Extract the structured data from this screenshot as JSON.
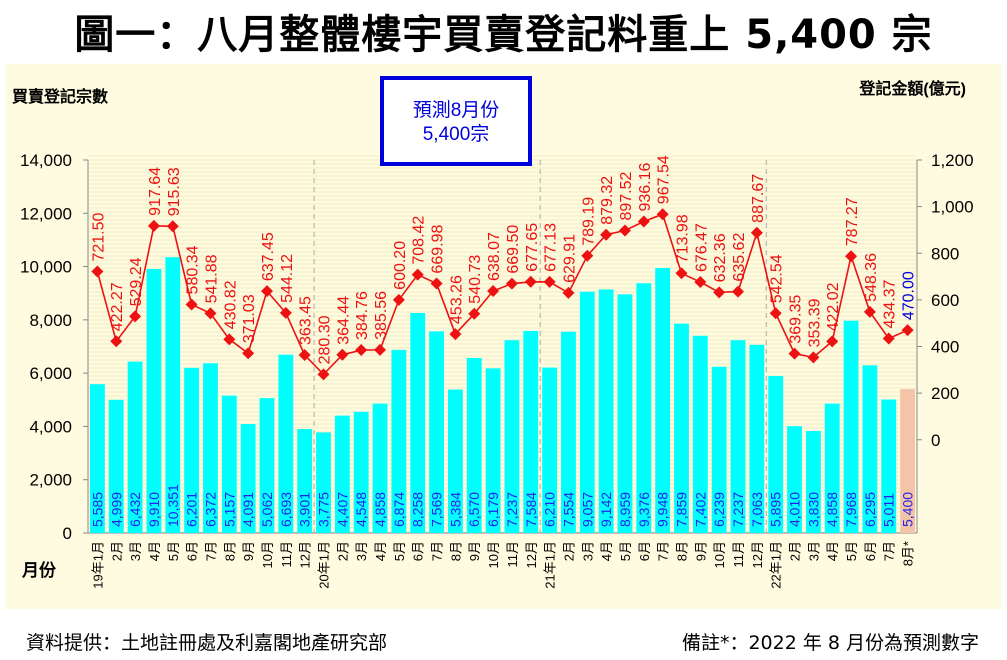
{
  "title": "圖一：八月整體樓宇買賣登記料重上 5,400 宗",
  "footer": {
    "source": "資料提供：土地註冊處及利嘉閣地產研究部",
    "note": "備註*：2022 年 8 月份為預測數字"
  },
  "annotation": {
    "line1": "預測8月份",
    "line2": "5,400宗"
  },
  "chart_data": {
    "type": "bar+line",
    "title": "圖一：八月整體樓宇買賣登記料重上 5,400 宗",
    "xlabel": "月份",
    "ylabel": "買賣登記宗數",
    "y2label": "登記金額(億元)",
    "ylim": [
      0,
      14000
    ],
    "y2lim": [
      -400,
      1200
    ],
    "yticks": [
      "0",
      "2,000",
      "4,000",
      "6,000",
      "8,000",
      "10,000",
      "12,000",
      "14,000"
    ],
    "y2ticks": [
      "0",
      "200",
      "400",
      "600",
      "800",
      "1,000",
      "1,200"
    ],
    "categories": [
      "19年1月",
      "2月",
      "3月",
      "4月",
      "5月",
      "6月",
      "7月",
      "8月",
      "9月",
      "10月",
      "11月",
      "12月",
      "20年1月",
      "2月",
      "3月",
      "4月",
      "5月",
      "6月",
      "7月",
      "8月",
      "9月",
      "10月",
      "11月",
      "12月",
      "21年1月",
      "2月",
      "3月",
      "4月",
      "5月",
      "6月",
      "7月",
      "8月",
      "9月",
      "10月",
      "11月",
      "12月",
      "22年1月",
      "2月",
      "3月",
      "4月",
      "5月",
      "6月",
      "7月",
      "8月*"
    ],
    "series": [
      {
        "name": "買賣登記宗數",
        "type": "bar",
        "axis": "left",
        "color": "#00ffff",
        "forecast_color": "#f4c4a8",
        "values": [
          5585,
          4999,
          6432,
          9910,
          10351,
          6201,
          6372,
          5157,
          4091,
          5062,
          6693,
          3901,
          3775,
          4407,
          4548,
          4858,
          6874,
          8258,
          7569,
          5384,
          6570,
          6179,
          7237,
          7584,
          6210,
          7554,
          9057,
          9142,
          8959,
          9376,
          9948,
          7859,
          7402,
          6239,
          7237,
          7063,
          5895,
          4010,
          3830,
          4858,
          7968,
          6295,
          5011,
          5400
        ],
        "labels": [
          "5,585",
          "4,999",
          "6,432",
          "9,910",
          "10,351",
          "6,201",
          "6,372",
          "5,157",
          "4,091",
          "5,062",
          "6,693",
          "3,901",
          "3,775",
          "4,407",
          "4,548",
          "4,858",
          "6,874",
          "8,258",
          "7,569",
          "5,384",
          "6,570",
          "6,179",
          "7,237",
          "7,584",
          "6,210",
          "7,554",
          "9,057",
          "9,142",
          "8,959",
          "9,376",
          "9,948",
          "7,859",
          "7,402",
          "6,239",
          "7,237",
          "7,063",
          "5,895",
          "4,010",
          "3,830",
          "4,858",
          "7,968",
          "6,295",
          "5,011",
          "5,400"
        ]
      },
      {
        "name": "登記金額(億元)",
        "type": "line",
        "axis": "right",
        "color": "#ee1111",
        "forecast_label_color": "#0000dd",
        "values": [
          721.5,
          422.27,
          529.24,
          917.64,
          915.63,
          580.34,
          541.88,
          430.82,
          371.03,
          637.45,
          544.12,
          363.45,
          280.3,
          364.44,
          384.76,
          385.56,
          600.2,
          708.42,
          669.98,
          453.26,
          540.73,
          638.07,
          669.5,
          677.65,
          677.13,
          629.91,
          789.19,
          879.32,
          897.52,
          936.16,
          967.54,
          713.98,
          676.47,
          632.36,
          635.62,
          887.67,
          542.54,
          369.35,
          353.39,
          422.02,
          787.27,
          548.36,
          434.37,
          470.0
        ],
        "labels": [
          "721.50",
          "422.27",
          "529.24",
          "917.64",
          "915.63",
          "580.34",
          "541.88",
          "430.82",
          "371.03",
          "637.45",
          "544.12",
          "363.45",
          "280.30",
          "364.44",
          "384.76",
          "385.56",
          "600.20",
          "708.42",
          "669.98",
          "453.26",
          "540.73",
          "638.07",
          "669.50",
          "677.65",
          "677.13",
          "629.91",
          "789.19",
          "879.32",
          "897.52",
          "936.16",
          "967.54",
          "713.98",
          "676.47",
          "632.36",
          "635.62",
          "887.67",
          "542.54",
          "369.35",
          "353.39",
          "422.02",
          "787.27",
          "548.36",
          "434.37",
          "470.00"
        ]
      }
    ]
  }
}
